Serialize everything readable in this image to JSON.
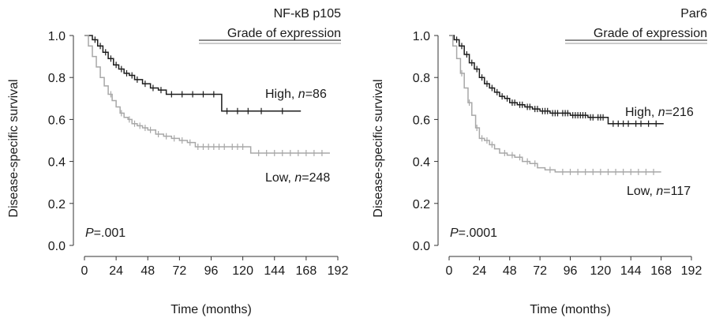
{
  "colors": {
    "high": "#1c1c1c",
    "low": "#a8a8a8",
    "axis": "#333333",
    "legend_rule": "#9a9a9a"
  },
  "chart_data": [
    {
      "type": "line",
      "title": "NF-κB p105",
      "subtitle": "Grade of expression",
      "xlabel": "Time (months)",
      "ylabel": "Disease-specific survival",
      "xlim": [
        0,
        192
      ],
      "ylim": [
        0,
        1.0
      ],
      "xticks": [
        "0",
        "24",
        "48",
        "72",
        "96",
        "120",
        "144",
        "168",
        "192"
      ],
      "yticks": [
        "0.0",
        "0.2",
        "0.4",
        "0.6",
        "0.8",
        "1.0"
      ],
      "grid": false,
      "p_label": "P",
      "p_value": "=.001",
      "series": [
        {
          "name": "High",
          "n": "=86",
          "color_key": "high",
          "x": [
            0,
            6,
            10,
            14,
            18,
            22,
            26,
            30,
            34,
            38,
            44,
            50,
            56,
            62,
            104,
            164
          ],
          "y": [
            1.0,
            0.98,
            0.95,
            0.92,
            0.89,
            0.86,
            0.84,
            0.82,
            0.81,
            0.79,
            0.77,
            0.75,
            0.74,
            0.72,
            0.64,
            0.64
          ],
          "censor_x": [
            8,
            12,
            16,
            20,
            24,
            28,
            32,
            36,
            40,
            46,
            52,
            58,
            66,
            74,
            82,
            90,
            98,
            108,
            116,
            124,
            134,
            150
          ]
        },
        {
          "name": "Low",
          "n": "=248",
          "color_key": "low",
          "x": [
            0,
            3,
            6,
            9,
            12,
            15,
            18,
            21,
            24,
            27,
            30,
            33,
            36,
            40,
            44,
            48,
            54,
            60,
            66,
            72,
            78,
            84,
            92,
            100,
            110,
            126,
            186
          ],
          "y": [
            1.0,
            0.95,
            0.9,
            0.85,
            0.8,
            0.76,
            0.72,
            0.69,
            0.66,
            0.63,
            0.61,
            0.6,
            0.58,
            0.57,
            0.56,
            0.55,
            0.53,
            0.52,
            0.51,
            0.5,
            0.49,
            0.47,
            0.47,
            0.47,
            0.47,
            0.44,
            0.44
          ],
          "censor_x": [
            20,
            28,
            34,
            38,
            42,
            46,
            50,
            56,
            62,
            68,
            74,
            80,
            86,
            90,
            94,
            98,
            102,
            106,
            112,
            116,
            120,
            132,
            138,
            144,
            150,
            156,
            162,
            168,
            174,
            180
          ]
        }
      ]
    },
    {
      "type": "line",
      "title": "Par6",
      "subtitle": "Grade of expression",
      "xlabel": "Time (months)",
      "ylabel": "Disease-specific survival",
      "xlim": [
        0,
        192
      ],
      "ylim": [
        0,
        1.0
      ],
      "xticks": [
        "0",
        "24",
        "48",
        "72",
        "96",
        "120",
        "144",
        "168",
        "192"
      ],
      "yticks": [
        "0.0",
        "0.2",
        "0.4",
        "0.6",
        "0.8",
        "1.0"
      ],
      "grid": false,
      "p_label": "P",
      "p_value": "=.0001",
      "series": [
        {
          "name": "High",
          "n": "=216",
          "color_key": "high",
          "x": [
            0,
            4,
            8,
            12,
            16,
            20,
            24,
            28,
            32,
            36,
            40,
            44,
            48,
            54,
            60,
            66,
            72,
            80,
            88,
            96,
            110,
            126,
            170
          ],
          "y": [
            1.0,
            0.98,
            0.95,
            0.91,
            0.87,
            0.84,
            0.8,
            0.77,
            0.75,
            0.73,
            0.71,
            0.7,
            0.68,
            0.67,
            0.66,
            0.65,
            0.64,
            0.63,
            0.63,
            0.62,
            0.61,
            0.58,
            0.58
          ],
          "censor_x": [
            6,
            10,
            14,
            18,
            22,
            26,
            30,
            34,
            38,
            42,
            46,
            50,
            52,
            56,
            58,
            62,
            64,
            68,
            70,
            74,
            76,
            78,
            82,
            84,
            86,
            90,
            92,
            94,
            98,
            100,
            102,
            104,
            106,
            108,
            112,
            114,
            118,
            120,
            122,
            130,
            134,
            138,
            142,
            148,
            152,
            158,
            164
          ]
        },
        {
          "name": "Low",
          "n": "=117",
          "color_key": "low",
          "x": [
            0,
            3,
            6,
            9,
            12,
            15,
            18,
            21,
            24,
            28,
            32,
            36,
            40,
            46,
            52,
            58,
            64,
            70,
            76,
            84,
            168
          ],
          "y": [
            1.0,
            0.95,
            0.89,
            0.82,
            0.75,
            0.68,
            0.62,
            0.56,
            0.51,
            0.5,
            0.48,
            0.46,
            0.44,
            0.43,
            0.42,
            0.4,
            0.39,
            0.37,
            0.36,
            0.35,
            0.35
          ],
          "censor_x": [
            10,
            16,
            22,
            26,
            30,
            34,
            44,
            50,
            56,
            62,
            68,
            80,
            90,
            96,
            102,
            108,
            114,
            120,
            126,
            132,
            138,
            144,
            150,
            156,
            162
          ]
        }
      ]
    }
  ]
}
